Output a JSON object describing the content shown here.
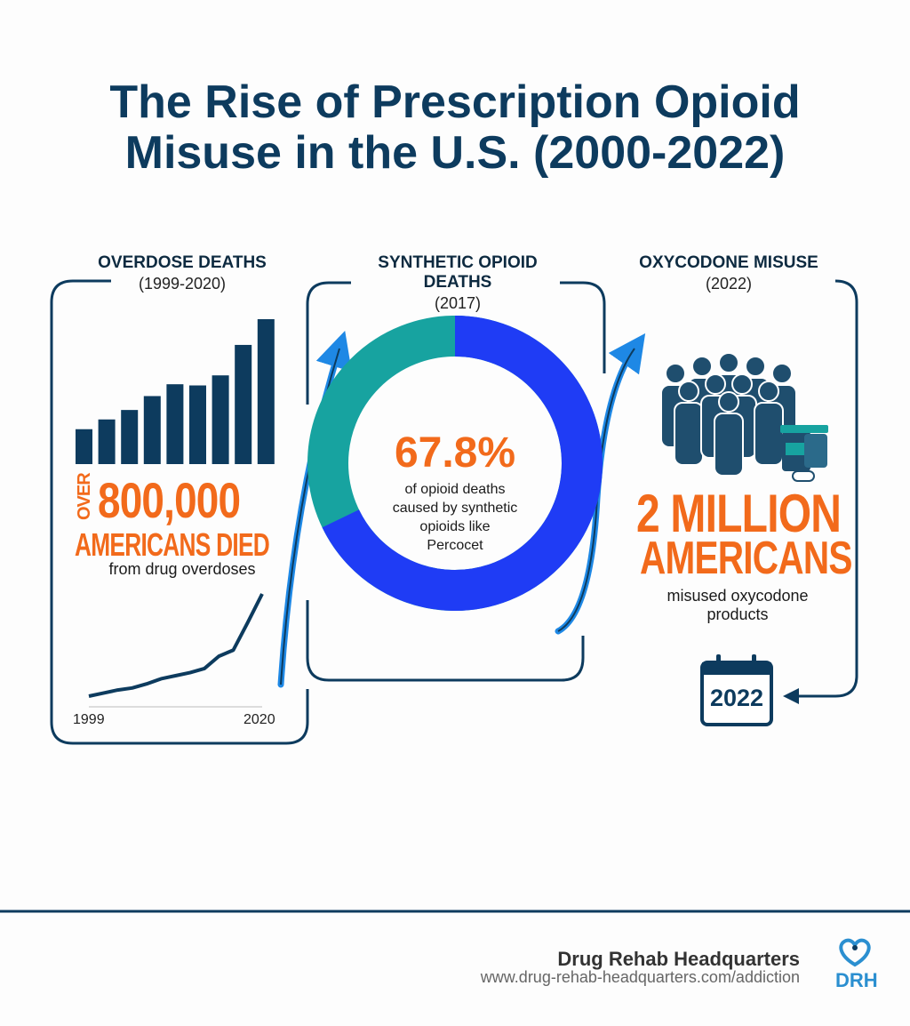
{
  "title": {
    "line1": "The Rise of Prescription Opioid",
    "line2": "Misuse in the U.S. (2000-2022)"
  },
  "colors": {
    "navy": "#0d3b5e",
    "orange": "#f26a1b",
    "blue": "#1f3cf5",
    "teal": "#17a3a0",
    "arrow": "#1e88e5"
  },
  "panel1": {
    "heading": "OVERDOSE DEATHS",
    "period": "(1999-2020)",
    "bars": [
      118,
      151,
      183,
      230,
      270,
      266,
      300,
      403,
      490
    ],
    "trend": [
      0,
      3,
      6,
      8,
      12,
      17,
      20,
      23,
      27,
      39,
      45,
      72,
      100
    ],
    "over": "OVER",
    "number": "800,000",
    "headline": "AMERICANS DIED",
    "caption": "from drug overdoses",
    "axis_start": "1999",
    "axis_end": "2020"
  },
  "panel2": {
    "heading1": "SYNTHETIC OPIOID",
    "heading2": "DEATHS",
    "period": "(2017)",
    "percent_value": 67.8,
    "percent": "67.8%",
    "caption": [
      "of opioid deaths",
      "caused by synthetic",
      "opioids like",
      "Percocet"
    ]
  },
  "panel3": {
    "heading": "OXYCODONE MISUSE",
    "period": "(2022)",
    "number": "2 MILLION",
    "headline": "AMERICANS",
    "caption1": "misused oxycodone",
    "caption2": "products",
    "calendar_year": "2022"
  },
  "footer": {
    "org": "Drug Rehab Headquarters",
    "url": "www.drug-rehab-headquarters.com/addiction",
    "logo_text": "DRH"
  }
}
